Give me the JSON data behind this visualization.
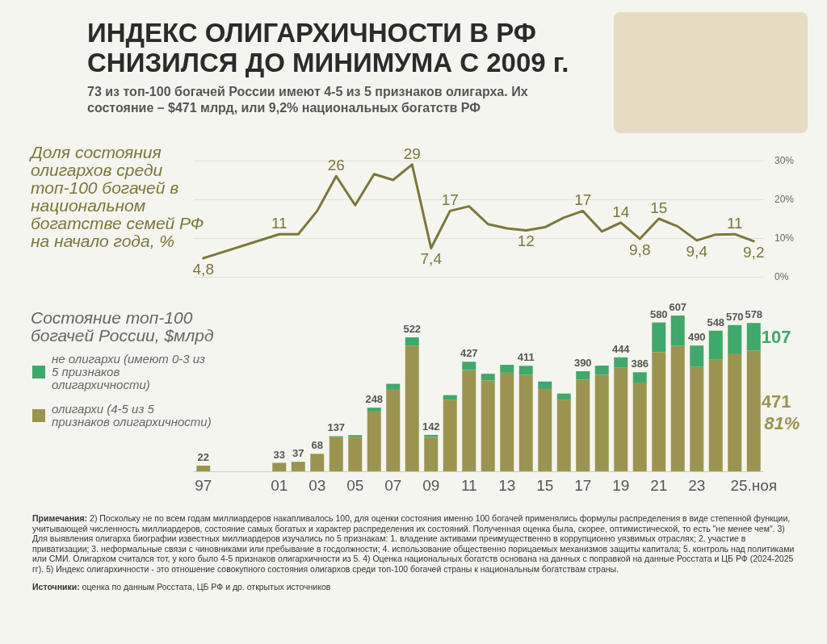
{
  "chart_data": [
    {
      "type": "line",
      "title": "ИНДЕКС ОЛИГАРХИЧНОСТИ В РФ СНИЗИЛСЯ ДО МИНИМУМА С 2009 г.",
      "subtitle": "73 из топ-100 богачей России имеют 4-5 из 5 признаков олигарха. Их состояние – $471 млрд, или 9,2% национальных богатств РФ",
      "ylabel": "Доля состояния олигархов среди топ-100 богачей в национальном богатстве семей РФ на начало года, %",
      "categories": [
        null,
        null,
        null,
        null,
        null,
        null,
        null,
        null,
        null,
        null,
        null,
        null,
        null,
        null,
        null,
        null,
        null,
        null,
        null,
        null,
        null,
        null,
        null,
        null,
        null,
        null,
        null,
        null,
        null,
        null
      ],
      "values": [
        4.8,
        null,
        null,
        null,
        11,
        11,
        17,
        26,
        18.5,
        26.5,
        25,
        29,
        7.4,
        17,
        18.2,
        13.6,
        12.5,
        12,
        12.8,
        15.3,
        17,
        11.7,
        14,
        9.8,
        15,
        13,
        9.4,
        10.9,
        11,
        9.2
      ],
      "value_labels": [
        "4,8",
        null,
        null,
        null,
        "11",
        null,
        null,
        "26",
        null,
        null,
        null,
        "29",
        "7,4",
        "17",
        null,
        null,
        null,
        "12",
        null,
        null,
        "17",
        null,
        "14",
        "9,8",
        "15",
        null,
        "9,4",
        null,
        "11",
        "9,2"
      ],
      "color": "#7b773a",
      "ylim": [
        0,
        30
      ],
      "yticks": [
        {
          "value": 0,
          "label": "0%"
        },
        {
          "value": 10,
          "label": "10%"
        },
        {
          "value": 20,
          "label": "20%"
        },
        {
          "value": 30,
          "label": "30%"
        }
      ],
      "grid": "y",
      "tick_labels": "y",
      "marker": "none",
      "line_style": "solid"
    },
    {
      "type": "bar",
      "ylabel": "Состояние топ-100 богачей России, $млрд",
      "categories": [
        "97",
        null,
        null,
        null,
        "01",
        null,
        "03",
        null,
        "05",
        null,
        "07",
        null,
        "09",
        null,
        "11",
        null,
        "13",
        null,
        "15",
        null,
        "17",
        null,
        "19",
        null,
        "21",
        null,
        "23",
        null,
        null,
        "25.ноя"
      ],
      "stacked": true,
      "series": [
        {
          "name": "олигархи (4-5 из 5 признаков олигархичности)",
          "color": "#9a9450",
          "values": [
            22,
            null,
            null,
            null,
            33,
            37,
            68,
            133,
            135,
            233,
            318,
            490,
            134,
            279,
            395,
            355,
            384,
            376,
            321,
            278,
            358,
            377,
            404,
            346,
            465,
            490,
            407,
            436,
            459,
            471
          ],
          "value_labels": [
            null,
            null,
            null,
            null,
            null,
            null,
            null,
            null,
            null,
            null,
            null,
            null,
            null,
            null,
            null,
            null,
            null,
            null,
            null,
            null,
            null,
            null,
            null,
            null,
            null,
            null,
            null,
            null,
            null,
            "471"
          ]
        },
        {
          "name": "не олигархи (имеют 0-3 из 5 признаков олигархичности)",
          "color": "#3fa86b",
          "values": [
            null,
            null,
            null,
            null,
            null,
            null,
            null,
            4,
            6,
            15,
            23,
            32,
            8,
            18,
            32,
            25,
            31,
            35,
            29,
            25,
            32,
            35,
            40,
            40,
            115,
            117,
            83,
            112,
            111,
            107
          ],
          "value_labels": [
            null,
            null,
            null,
            null,
            null,
            null,
            null,
            null,
            null,
            null,
            null,
            null,
            null,
            null,
            null,
            null,
            null,
            null,
            null,
            null,
            null,
            null,
            null,
            null,
            null,
            null,
            null,
            null,
            null,
            "107"
          ]
        }
      ],
      "totals": [
        "22",
        null,
        null,
        null,
        "33",
        "37",
        "68",
        "137",
        null,
        "248",
        null,
        "522",
        "142",
        null,
        "427",
        null,
        null,
        "411",
        null,
        null,
        "390",
        null,
        "444",
        "386",
        "580",
        "607",
        "490",
        "548",
        "570",
        "578"
      ],
      "grid": false,
      "legend": "left",
      "tick_labels": "x",
      "annotations": [
        "81%",
        "Примечания: 2) Поскольку не по всем годам миллиардеров накапливалось 100, для оценки состояния именно 100 богачей применялись формулы распределения в виде степенной функции, учитывающей численность миллиардеров, состояние самых богатых и характер распределения их состояний. Полученная оценка была, скорее, оптимистической, то есть \"не менее чем\". 3) Для выявления олигарха биографии известных миллиардеров изучались по 5 признакам: 1. владение активами преимущественно в коррупционно уязвимых отраслях; 2. участие в приватизации; 3. неформальные связи с чиновниками или пребывание в госдолжности; 4. использование общественно порицаемых механизмов защиты капитала; 5. контроль над политиками или СМИ. Олигархом считался тот, у кого было 4-5 признаков олигархичности из 5. 4) Оценка национальных богатств основана на данных с поправкой на данные Росстата и ЦБ РФ (2024-2025 гг). 5) Индекс олигархичности - это отношение совокупного состояния олигархов среди топ-100 богачей страны к национальным богатствам страны.",
        "Источники: оценка по данным Росстата, ЦБ РФ и др. открытых источников"
      ]
    }
  ]
}
